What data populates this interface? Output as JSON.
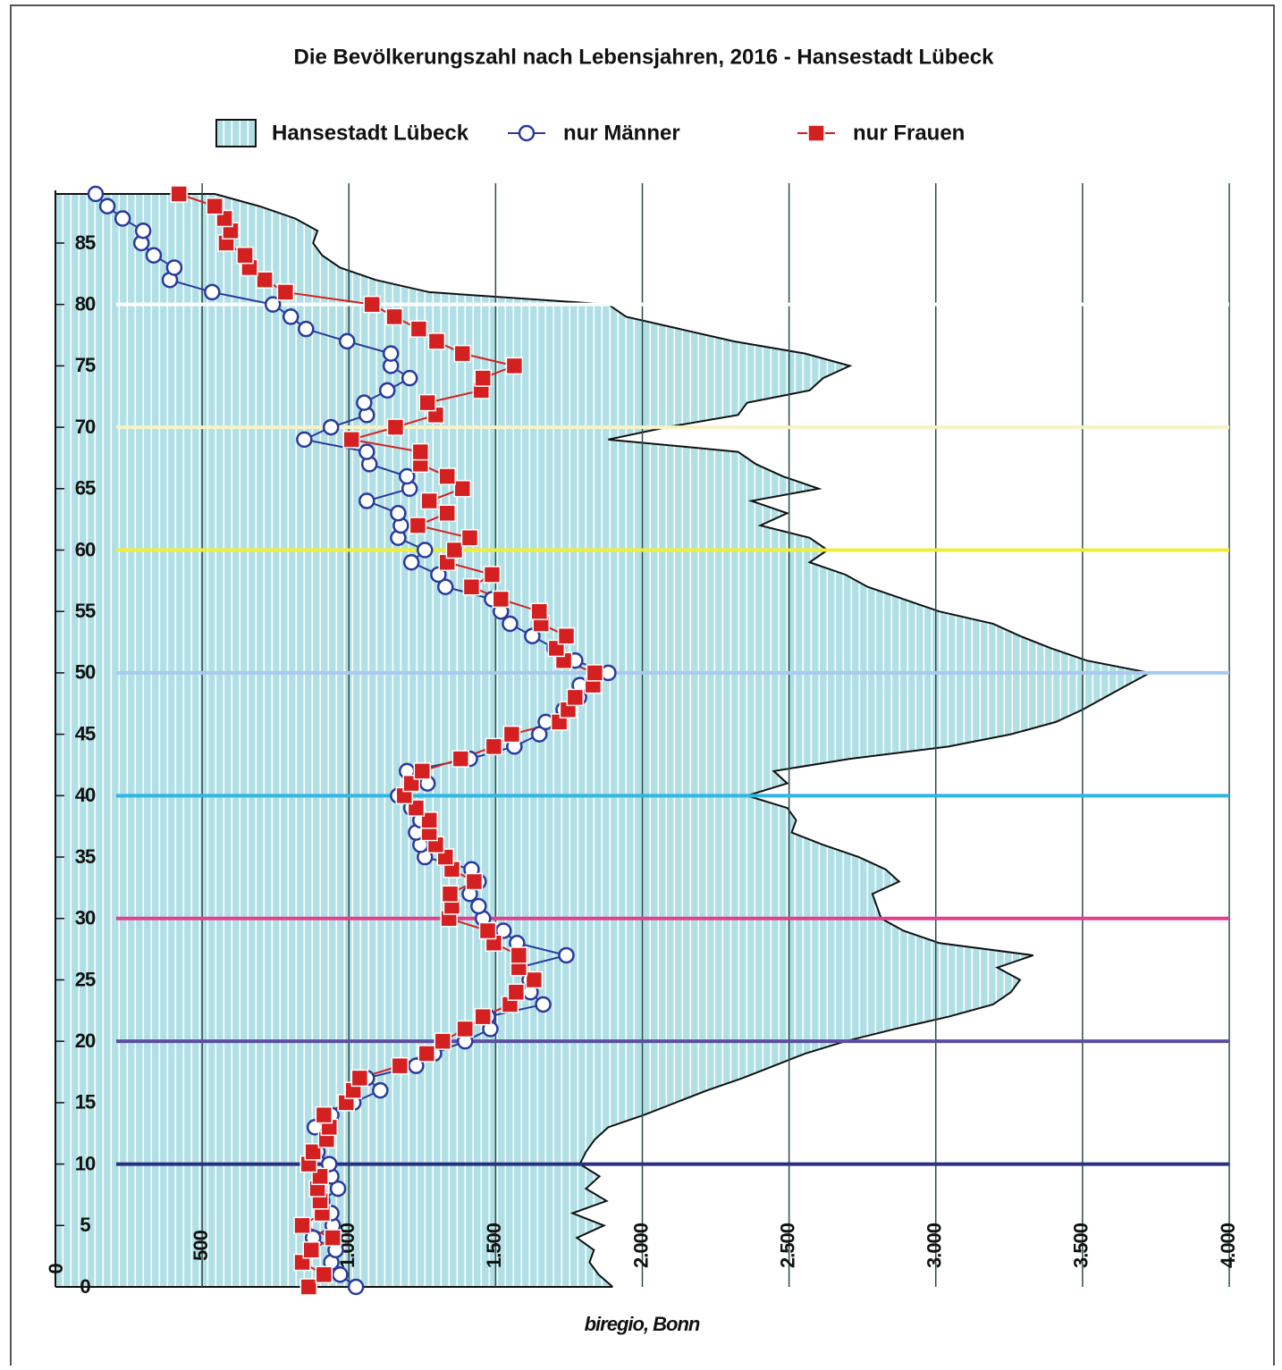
{
  "chart_data": {
    "type": "horizontal-line-area",
    "title": "Die Bevölkerungszahl nach Lebensjahren, 2016 - Hansestadt Lübeck",
    "source": "biregio, Bonn",
    "y": [
      0,
      1,
      2,
      3,
      4,
      5,
      6,
      7,
      8,
      9,
      10,
      11,
      12,
      13,
      14,
      15,
      16,
      17,
      18,
      19,
      20,
      21,
      22,
      23,
      24,
      25,
      26,
      27,
      28,
      29,
      30,
      31,
      32,
      33,
      34,
      35,
      36,
      37,
      38,
      39,
      40,
      41,
      42,
      43,
      44,
      45,
      46,
      47,
      48,
      49,
      50,
      51,
      52,
      53,
      54,
      55,
      56,
      57,
      58,
      59,
      60,
      61,
      62,
      63,
      64,
      65,
      66,
      67,
      68,
      69,
      70,
      71,
      72,
      73,
      74,
      75,
      76,
      77,
      78,
      79,
      80,
      81,
      82,
      83,
      84,
      85,
      86,
      87,
      88,
      89
    ],
    "ylim": [
      0,
      89
    ],
    "yticks": [
      0,
      5,
      10,
      15,
      20,
      25,
      30,
      35,
      40,
      45,
      50,
      55,
      60,
      65,
      70,
      75,
      80,
      85
    ],
    "xlim": [
      0,
      4000
    ],
    "xticks": [
      0,
      500,
      {
        "value": 1000,
        "label": "1.000"
      },
      {
        "value": 1500,
        "label": "1.500"
      },
      {
        "value": 2000,
        "label": "2.000"
      },
      {
        "value": 2500,
        "label": "2.500"
      },
      {
        "value": 3000,
        "label": "3.000"
      },
      {
        "value": 3500,
        "label": "3.500"
      },
      {
        "value": 4000,
        "label": "4.000"
      }
    ],
    "grid": true,
    "hlines": [
      {
        "value": 10,
        "color": "#2b2f80"
      },
      {
        "value": 20,
        "color": "#5b4ea2"
      },
      {
        "value": 30,
        "color": "#e0408c"
      },
      {
        "value": 40,
        "color": "#2fb6e2"
      },
      {
        "value": 50,
        "color": "#a9c9ee"
      },
      {
        "value": 60,
        "color": "#eeee3a"
      },
      {
        "value": 70,
        "color": "#f6f2c6"
      },
      {
        "value": 80,
        "color": "#ffffff"
      }
    ],
    "series": [
      {
        "name": "Hansestadt Lübeck",
        "kind": "area",
        "color": "#b0e0e6",
        "values": [
          1899,
          1851,
          1820,
          1835,
          1777,
          1869,
          1762,
          1878,
          1808,
          1854,
          1787,
          1808,
          1838,
          1884,
          2006,
          2113,
          2220,
          2341,
          2448,
          2555,
          2692,
          2860,
          3043,
          3195,
          3256,
          3287,
          3210,
          3332,
          3012,
          2890,
          2814,
          2799,
          2784,
          2875,
          2829,
          2738,
          2616,
          2509,
          2524,
          2494,
          2357,
          2494,
          2448,
          2707,
          3043,
          3256,
          3409,
          3500,
          3576,
          3652,
          3729,
          3515,
          3393,
          3287,
          3195,
          3012,
          2890,
          2768,
          2692,
          2570,
          2631,
          2570,
          2402,
          2494,
          2372,
          2601,
          2479,
          2387,
          2326,
          1884,
          2082,
          2326,
          2357,
          2570,
          2616,
          2707,
          2555,
          2311,
          2128,
          1945,
          1884,
          1274,
          1091,
          970,
          909,
          878,
          893,
          817,
          695,
          543
        ]
      },
      {
        "name": "nur Männer",
        "kind": "circle",
        "color": "#2a3a9c",
        "values": [
          1024,
          970,
          940,
          955,
          878,
          945,
          940,
          909,
          963,
          940,
          933,
          893,
          924,
          884,
          940,
          1015,
          1107,
          1061,
          1229,
          1290,
          1396,
          1482,
          1473,
          1662,
          1619,
          1616,
          1579,
          1741,
          1573,
          1527,
          1457,
          1442,
          1412,
          1442,
          1418,
          1259,
          1244,
          1229,
          1244,
          1213,
          1168,
          1268,
          1198,
          1412,
          1564,
          1649,
          1671,
          1732,
          1784,
          1787,
          1884,
          1771,
          1701,
          1625,
          1549,
          1518,
          1488,
          1329,
          1305,
          1213,
          1259,
          1168,
          1177,
          1168,
          1061,
          1207,
          1198,
          1070,
          1061,
          848,
          939,
          1061,
          1052,
          1131,
          1207,
          1143,
          1143,
          994,
          854,
          802,
          741,
          534,
          390,
          405,
          335,
          293,
          299,
          229,
          177,
          137
        ]
      },
      {
        "name": "nur Frauen",
        "kind": "square",
        "color": "#d42020",
        "values": [
          863,
          915,
          841,
          872,
          945,
          841,
          909,
          902,
          893,
          902,
          863,
          878,
          924,
          933,
          915,
          991,
          1015,
          1037,
          1174,
          1265,
          1320,
          1396,
          1457,
          1549,
          1570,
          1631,
          1579,
          1579,
          1494,
          1473,
          1341,
          1351,
          1345,
          1427,
          1351,
          1329,
          1296,
          1274,
          1274,
          1229,
          1189,
          1213,
          1250,
          1381,
          1494,
          1555,
          1717,
          1747,
          1771,
          1832,
          1838,
          1732,
          1707,
          1741,
          1655,
          1649,
          1518,
          1418,
          1488,
          1335,
          1360,
          1412,
          1235,
          1335,
          1274,
          1387,
          1335,
          1244,
          1244,
          1009,
          1159,
          1296,
          1268,
          1451,
          1457,
          1564,
          1387,
          1299,
          1238,
          1155,
          1079,
          784,
          713,
          661,
          646,
          582,
          597,
          576,
          543,
          421
        ]
      }
    ]
  }
}
